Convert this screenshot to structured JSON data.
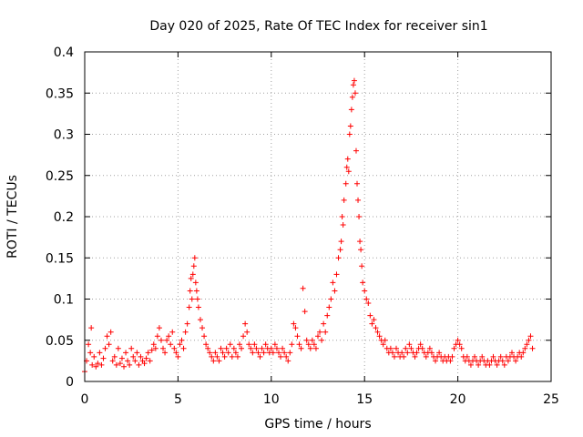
{
  "chart_data": {
    "type": "scatter",
    "title": "Day 020 of 2025, Rate Of TEC Index for receiver sin1",
    "xlabel": "GPS time / hours",
    "ylabel": "ROTI / TECUs",
    "xlim": [
      0,
      25
    ],
    "ylim": [
      0,
      0.4
    ],
    "xticks": [
      0,
      5,
      10,
      15,
      20,
      25
    ],
    "xtick_labels": [
      "0",
      "5",
      "10",
      "15",
      "20",
      "25"
    ],
    "yticks": [
      0,
      0.05,
      0.1,
      0.15,
      0.2,
      0.25,
      0.3,
      0.35,
      0.4
    ],
    "ytick_labels": [
      "0",
      "0.05",
      "0.1",
      "0.15",
      "0.2",
      "0.25",
      "0.3",
      "0.35",
      "0.4"
    ],
    "grid": true,
    "marker": "+",
    "series": [
      {
        "name": "ROTI",
        "color": "#ff0000",
        "points": [
          [
            0.0,
            0.012
          ],
          [
            0.1,
            0.025
          ],
          [
            0.2,
            0.045
          ],
          [
            0.3,
            0.035
          ],
          [
            0.35,
            0.065
          ],
          [
            0.4,
            0.02
          ],
          [
            0.5,
            0.03
          ],
          [
            0.6,
            0.018
          ],
          [
            0.7,
            0.022
          ],
          [
            0.8,
            0.035
          ],
          [
            0.9,
            0.02
          ],
          [
            1.0,
            0.028
          ],
          [
            1.1,
            0.04
          ],
          [
            1.2,
            0.055
          ],
          [
            1.3,
            0.045
          ],
          [
            1.4,
            0.06
          ],
          [
            1.5,
            0.025
          ],
          [
            1.6,
            0.03
          ],
          [
            1.7,
            0.02
          ],
          [
            1.8,
            0.04
          ],
          [
            1.9,
            0.022
          ],
          [
            2.0,
            0.028
          ],
          [
            2.1,
            0.018
          ],
          [
            2.2,
            0.035
          ],
          [
            2.3,
            0.025
          ],
          [
            2.4,
            0.02
          ],
          [
            2.5,
            0.04
          ],
          [
            2.6,
            0.03
          ],
          [
            2.7,
            0.025
          ],
          [
            2.8,
            0.035
          ],
          [
            2.9,
            0.02
          ],
          [
            3.0,
            0.03
          ],
          [
            3.1,
            0.025
          ],
          [
            3.2,
            0.022
          ],
          [
            3.3,
            0.028
          ],
          [
            3.4,
            0.035
          ],
          [
            3.5,
            0.025
          ],
          [
            3.6,
            0.038
          ],
          [
            3.7,
            0.045
          ],
          [
            3.8,
            0.04
          ],
          [
            3.9,
            0.055
          ],
          [
            4.0,
            0.065
          ],
          [
            4.1,
            0.05
          ],
          [
            4.2,
            0.04
          ],
          [
            4.3,
            0.035
          ],
          [
            4.4,
            0.05
          ],
          [
            4.5,
            0.055
          ],
          [
            4.6,
            0.045
          ],
          [
            4.7,
            0.06
          ],
          [
            4.8,
            0.04
          ],
          [
            4.9,
            0.035
          ],
          [
            5.0,
            0.03
          ],
          [
            5.1,
            0.045
          ],
          [
            5.2,
            0.05
          ],
          [
            5.3,
            0.04
          ],
          [
            5.4,
            0.06
          ],
          [
            5.5,
            0.07
          ],
          [
            5.6,
            0.09
          ],
          [
            5.65,
            0.11
          ],
          [
            5.7,
            0.125
          ],
          [
            5.75,
            0.1
          ],
          [
            5.8,
            0.13
          ],
          [
            5.85,
            0.14
          ],
          [
            5.9,
            0.15
          ],
          [
            5.95,
            0.12
          ],
          [
            6.0,
            0.11
          ],
          [
            6.05,
            0.1
          ],
          [
            6.1,
            0.09
          ],
          [
            6.2,
            0.075
          ],
          [
            6.3,
            0.065
          ],
          [
            6.4,
            0.055
          ],
          [
            6.5,
            0.045
          ],
          [
            6.6,
            0.04
          ],
          [
            6.7,
            0.035
          ],
          [
            6.8,
            0.03
          ],
          [
            6.9,
            0.025
          ],
          [
            7.0,
            0.035
          ],
          [
            7.1,
            0.03
          ],
          [
            7.2,
            0.025
          ],
          [
            7.3,
            0.04
          ],
          [
            7.4,
            0.035
          ],
          [
            7.5,
            0.03
          ],
          [
            7.6,
            0.04
          ],
          [
            7.7,
            0.035
          ],
          [
            7.8,
            0.045
          ],
          [
            7.9,
            0.03
          ],
          [
            8.0,
            0.04
          ],
          [
            8.1,
            0.035
          ],
          [
            8.2,
            0.03
          ],
          [
            8.3,
            0.045
          ],
          [
            8.4,
            0.04
          ],
          [
            8.5,
            0.055
          ],
          [
            8.6,
            0.07
          ],
          [
            8.7,
            0.06
          ],
          [
            8.8,
            0.045
          ],
          [
            8.9,
            0.04
          ],
          [
            9.0,
            0.035
          ],
          [
            9.1,
            0.045
          ],
          [
            9.2,
            0.04
          ],
          [
            9.3,
            0.035
          ],
          [
            9.4,
            0.03
          ],
          [
            9.5,
            0.04
          ],
          [
            9.6,
            0.035
          ],
          [
            9.7,
            0.045
          ],
          [
            9.8,
            0.04
          ],
          [
            9.9,
            0.035
          ],
          [
            10.0,
            0.04
          ],
          [
            10.1,
            0.035
          ],
          [
            10.2,
            0.045
          ],
          [
            10.3,
            0.04
          ],
          [
            10.4,
            0.035
          ],
          [
            10.5,
            0.03
          ],
          [
            10.6,
            0.04
          ],
          [
            10.7,
            0.035
          ],
          [
            10.8,
            0.03
          ],
          [
            10.9,
            0.025
          ],
          [
            11.0,
            0.035
          ],
          [
            11.1,
            0.045
          ],
          [
            11.2,
            0.07
          ],
          [
            11.3,
            0.065
          ],
          [
            11.4,
            0.055
          ],
          [
            11.5,
            0.045
          ],
          [
            11.6,
            0.04
          ],
          [
            11.7,
            0.113
          ],
          [
            11.8,
            0.085
          ],
          [
            11.9,
            0.05
          ],
          [
            12.0,
            0.045
          ],
          [
            12.1,
            0.04
          ],
          [
            12.2,
            0.05
          ],
          [
            12.3,
            0.045
          ],
          [
            12.4,
            0.04
          ],
          [
            12.5,
            0.055
          ],
          [
            12.6,
            0.06
          ],
          [
            12.7,
            0.05
          ],
          [
            12.8,
            0.07
          ],
          [
            12.9,
            0.06
          ],
          [
            13.0,
            0.08
          ],
          [
            13.1,
            0.09
          ],
          [
            13.2,
            0.1
          ],
          [
            13.3,
            0.12
          ],
          [
            13.4,
            0.11
          ],
          [
            13.5,
            0.13
          ],
          [
            13.6,
            0.15
          ],
          [
            13.7,
            0.16
          ],
          [
            13.75,
            0.17
          ],
          [
            13.8,
            0.2
          ],
          [
            13.85,
            0.19
          ],
          [
            13.9,
            0.22
          ],
          [
            14.0,
            0.24
          ],
          [
            14.05,
            0.26
          ],
          [
            14.1,
            0.27
          ],
          [
            14.15,
            0.255
          ],
          [
            14.2,
            0.3
          ],
          [
            14.25,
            0.31
          ],
          [
            14.3,
            0.33
          ],
          [
            14.35,
            0.345
          ],
          [
            14.4,
            0.36
          ],
          [
            14.45,
            0.365
          ],
          [
            14.5,
            0.35
          ],
          [
            14.55,
            0.28
          ],
          [
            14.6,
            0.24
          ],
          [
            14.65,
            0.22
          ],
          [
            14.7,
            0.2
          ],
          [
            14.75,
            0.17
          ],
          [
            14.8,
            0.16
          ],
          [
            14.85,
            0.14
          ],
          [
            14.9,
            0.12
          ],
          [
            15.0,
            0.11
          ],
          [
            15.1,
            0.1
          ],
          [
            15.2,
            0.095
          ],
          [
            15.3,
            0.08
          ],
          [
            15.4,
            0.07
          ],
          [
            15.5,
            0.075
          ],
          [
            15.6,
            0.065
          ],
          [
            15.7,
            0.06
          ],
          [
            15.8,
            0.055
          ],
          [
            15.9,
            0.05
          ],
          [
            16.0,
            0.045
          ],
          [
            16.1,
            0.05
          ],
          [
            16.2,
            0.04
          ],
          [
            16.3,
            0.035
          ],
          [
            16.4,
            0.04
          ],
          [
            16.5,
            0.035
          ],
          [
            16.6,
            0.03
          ],
          [
            16.7,
            0.04
          ],
          [
            16.8,
            0.035
          ],
          [
            16.9,
            0.03
          ],
          [
            17.0,
            0.035
          ],
          [
            17.1,
            0.03
          ],
          [
            17.2,
            0.04
          ],
          [
            17.3,
            0.035
          ],
          [
            17.4,
            0.045
          ],
          [
            17.5,
            0.04
          ],
          [
            17.6,
            0.035
          ],
          [
            17.7,
            0.03
          ],
          [
            17.8,
            0.035
          ],
          [
            17.9,
            0.04
          ],
          [
            18.0,
            0.045
          ],
          [
            18.1,
            0.04
          ],
          [
            18.2,
            0.035
          ],
          [
            18.3,
            0.03
          ],
          [
            18.4,
            0.035
          ],
          [
            18.5,
            0.04
          ],
          [
            18.6,
            0.035
          ],
          [
            18.7,
            0.03
          ],
          [
            18.8,
            0.025
          ],
          [
            18.9,
            0.03
          ],
          [
            19.0,
            0.035
          ],
          [
            19.1,
            0.03
          ],
          [
            19.2,
            0.025
          ],
          [
            19.3,
            0.03
          ],
          [
            19.4,
            0.025
          ],
          [
            19.5,
            0.03
          ],
          [
            19.6,
            0.025
          ],
          [
            19.7,
            0.03
          ],
          [
            19.8,
            0.04
          ],
          [
            19.9,
            0.045
          ],
          [
            20.0,
            0.05
          ],
          [
            20.1,
            0.045
          ],
          [
            20.2,
            0.04
          ],
          [
            20.3,
            0.03
          ],
          [
            20.4,
            0.025
          ],
          [
            20.5,
            0.03
          ],
          [
            20.6,
            0.025
          ],
          [
            20.7,
            0.02
          ],
          [
            20.8,
            0.025
          ],
          [
            20.9,
            0.03
          ],
          [
            21.0,
            0.025
          ],
          [
            21.1,
            0.02
          ],
          [
            21.2,
            0.025
          ],
          [
            21.3,
            0.03
          ],
          [
            21.4,
            0.025
          ],
          [
            21.5,
            0.02
          ],
          [
            21.6,
            0.025
          ],
          [
            21.7,
            0.02
          ],
          [
            21.8,
            0.025
          ],
          [
            21.9,
            0.03
          ],
          [
            22.0,
            0.025
          ],
          [
            22.1,
            0.02
          ],
          [
            22.2,
            0.025
          ],
          [
            22.3,
            0.03
          ],
          [
            22.4,
            0.025
          ],
          [
            22.5,
            0.02
          ],
          [
            22.6,
            0.03
          ],
          [
            22.7,
            0.025
          ],
          [
            22.8,
            0.03
          ],
          [
            22.9,
            0.035
          ],
          [
            23.0,
            0.03
          ],
          [
            23.1,
            0.025
          ],
          [
            23.2,
            0.03
          ],
          [
            23.3,
            0.035
          ],
          [
            23.4,
            0.03
          ],
          [
            23.5,
            0.035
          ],
          [
            23.6,
            0.04
          ],
          [
            23.7,
            0.045
          ],
          [
            23.8,
            0.05
          ],
          [
            23.9,
            0.055
          ],
          [
            24.0,
            0.04
          ]
        ]
      }
    ]
  }
}
